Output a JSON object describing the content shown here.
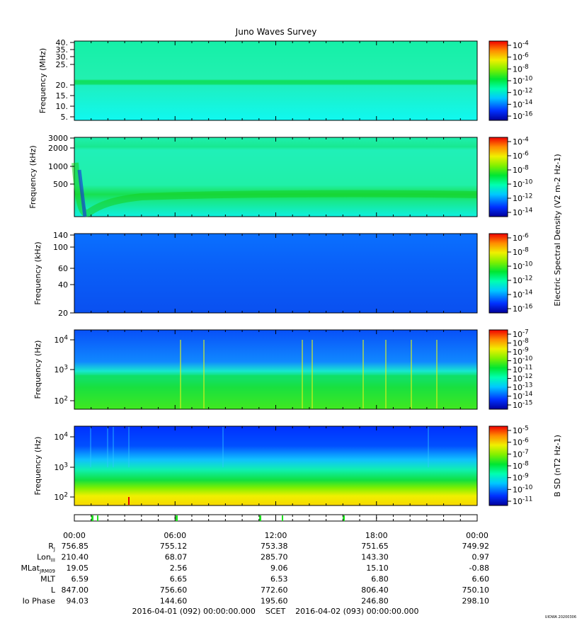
{
  "chart_data": {
    "type": "heatmap",
    "title": "Juno Waves Survey",
    "panels": [
      {
        "ylabel": "Frequency (MHz)",
        "yscale": "linear",
        "yticks": [
          "40.",
          "35.",
          "30.",
          "25.",
          "20.",
          "15.",
          "10.",
          "5."
        ],
        "cbar_ticks": [
          "10-4",
          "10-6",
          "10-8",
          "10-10",
          "10-12",
          "10-14",
          "10-16"
        ],
        "cbar_label": ""
      },
      {
        "ylabel": "Frequency (kHz)",
        "yscale": "log",
        "yticks": [
          "3000",
          "2000",
          "1000",
          "500"
        ],
        "cbar_ticks": [
          "10-4",
          "10-6",
          "10-8",
          "10-10",
          "10-12",
          "10-14"
        ],
        "cbar_label": "Electric Spectral Density (V2 m-2 Hz-1)"
      },
      {
        "ylabel": "Frequency (kHz)",
        "yscale": "log",
        "yticks": [
          "140",
          "100",
          "60",
          "40",
          "20"
        ],
        "cbar_ticks": [
          "10-6",
          "10-8",
          "10-10",
          "10-12",
          "10-14",
          "10-16"
        ],
        "cbar_label": ""
      },
      {
        "ylabel": "Frequency (Hz)",
        "yscale": "log",
        "yticks": [
          "10^4",
          "10^3",
          "10^2"
        ],
        "cbar_ticks": [
          "10-7",
          "10-8",
          "10-9",
          "10-10",
          "10-11",
          "10-12",
          "10-13",
          "10-14",
          "10-15"
        ],
        "cbar_label": ""
      },
      {
        "ylabel": "Frequency (Hz)",
        "yscale": "log",
        "yticks": [
          "10^4",
          "10^3",
          "10^2"
        ],
        "cbar_ticks": [
          "10-5",
          "10-6",
          "10-7",
          "10-8",
          "10-9",
          "10-10",
          "10-11"
        ],
        "cbar_label": "B SD (nT2 Hz-1)"
      }
    ],
    "xticks": [
      "00:00",
      "06:00",
      "12:00",
      "18:00",
      "00:00"
    ],
    "ephemeris": [
      {
        "label": "RJ",
        "values": [
          "756.85",
          "755.12",
          "753.38",
          "751.65",
          "749.92"
        ]
      },
      {
        "label": "LonIII",
        "values": [
          "210.40",
          "68.07",
          "285.70",
          "143.30",
          "0.97"
        ]
      },
      {
        "label": "MLatJRM09",
        "values": [
          "19.05",
          "2.56",
          "9.06",
          "15.10",
          "-0.88"
        ]
      },
      {
        "label": "MLT",
        "values": [
          "6.59",
          "6.65",
          "6.53",
          "6.80",
          "6.60"
        ]
      },
      {
        "label": "L",
        "values": [
          "847.00",
          "756.60",
          "772.60",
          "806.40",
          "750.10"
        ]
      },
      {
        "label": "Io Phase",
        "values": [
          "94.03",
          "144.60",
          "195.60",
          "246.80",
          "298.10"
        ]
      }
    ],
    "footer": "2016-04-01 (092) 00:00:00.000    SCET    2016-04-02 (093) 00:00:00.000",
    "stamp": "UIOWA 20200306"
  }
}
